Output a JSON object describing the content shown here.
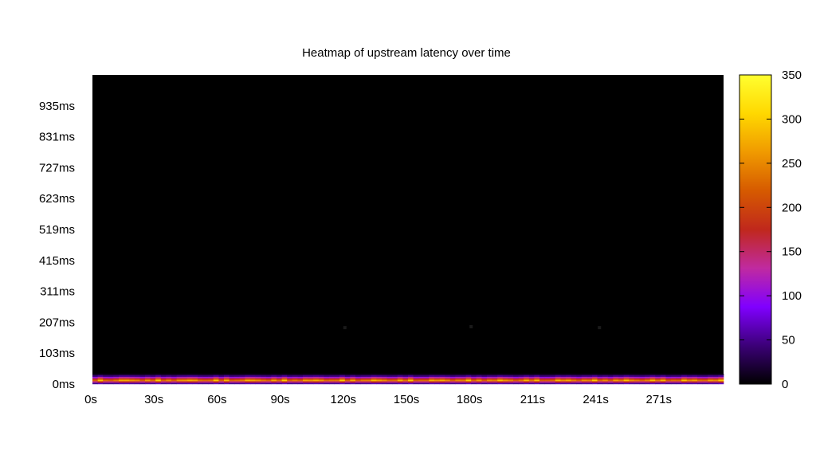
{
  "chart_data": {
    "type": "heatmap",
    "title": "Heatmap of upstream latency over time",
    "xlabel": "",
    "ylabel": "",
    "x_ticks": [
      "0s",
      "30s",
      "60s",
      "90s",
      "120s",
      "150s",
      "180s",
      "211s",
      "241s",
      "271s"
    ],
    "y_ticks": [
      "0ms",
      "103ms",
      "207ms",
      "311ms",
      "415ms",
      "519ms",
      "623ms",
      "727ms",
      "831ms",
      "935ms"
    ],
    "x_range_s": [
      0,
      300
    ],
    "y_range_ms": [
      0,
      1040
    ],
    "colorbar": {
      "range": [
        0,
        350
      ],
      "ticks": [
        "0",
        "50",
        "100",
        "150",
        "200",
        "250",
        "300",
        "350"
      ],
      "colors": [
        "#000000",
        "#3c0078",
        "#8000ff",
        "#c02aa0",
        "#c0281c",
        "#d65a00",
        "#f09a00",
        "#ffd800",
        "#ffff30"
      ]
    },
    "background_color": "#000000",
    "band_profile_ms": [
      {
        "latency_ms": 5,
        "count": 60
      },
      {
        "latency_ms": 10,
        "count": 160
      },
      {
        "latency_ms": 15,
        "count": 260
      },
      {
        "latency_ms": 20,
        "count": 200
      },
      {
        "latency_ms": 25,
        "count": 120
      },
      {
        "latency_ms": 30,
        "count": 50
      },
      {
        "latency_ms": 35,
        "count": 15
      }
    ],
    "sparse_points": [
      {
        "time_s": 120,
        "latency_ms": 190,
        "count": 2
      },
      {
        "time_s": 180,
        "latency_ms": 193,
        "count": 2
      },
      {
        "time_s": 241,
        "latency_ms": 190,
        "count": 2
      }
    ]
  }
}
